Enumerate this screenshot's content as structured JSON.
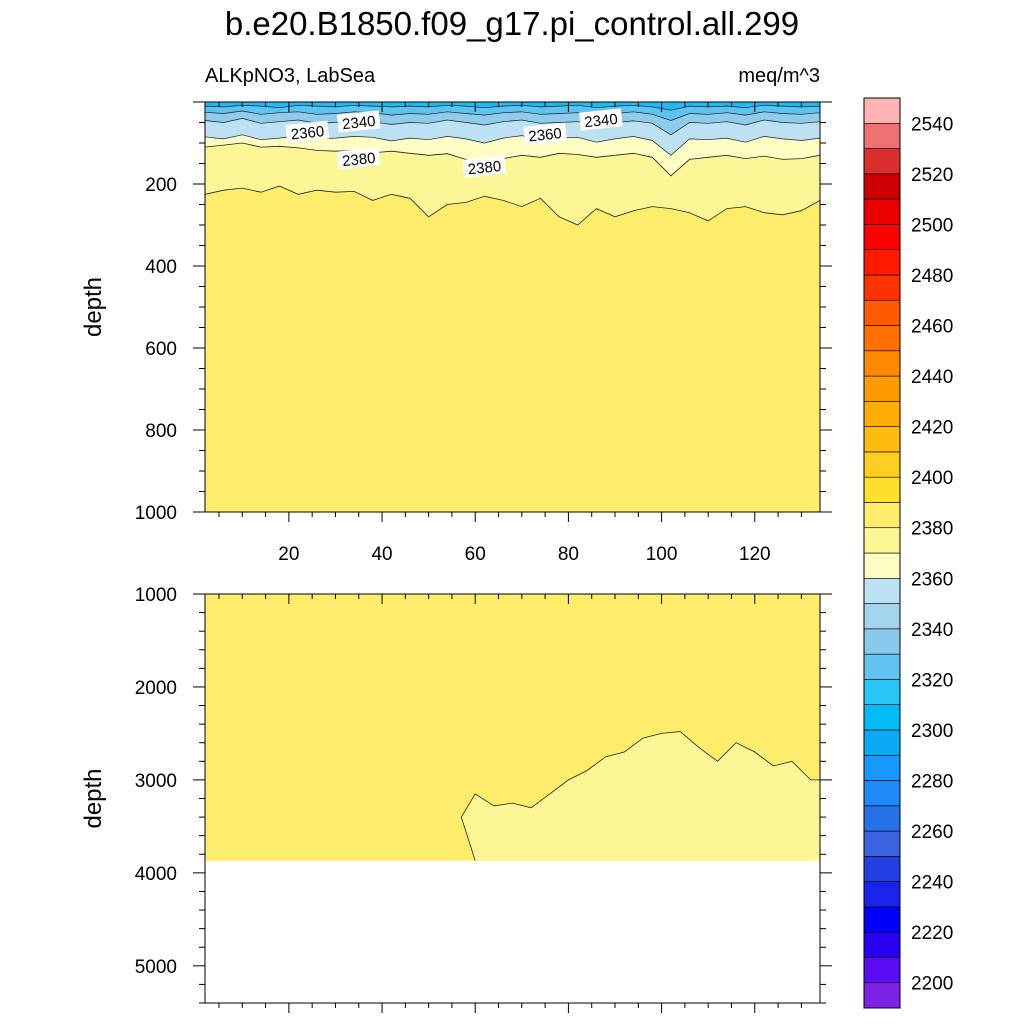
{
  "title": "b.e20.B1850.f09_g17.pi_control.all.299",
  "subtitle_left": "ALKpNO3, LabSea",
  "subtitle_right": "meq/m^3",
  "colors": {
    "yellow_2380_2400": "#fded6a",
    "yellow_2400_bin_light": "#fdf695",
    "yellow_pale": "#fefdc4",
    "blue_2360": "#bbe1f3",
    "blue_2340": "#8fcbed",
    "blue_2320": "#5dc3f3",
    "blue_2300": "#1fbbf5"
  },
  "chart_data": [
    {
      "type": "contour",
      "panel": "upper",
      "ylabel": "depth",
      "xlabel": "",
      "xlim": [
        2,
        134
      ],
      "ylim": [
        0,
        1000
      ],
      "y_inverted": true,
      "x_ticks": [
        20,
        40,
        60,
        80,
        100,
        120
      ],
      "y_ticks": [
        200,
        400,
        600,
        800,
        1000
      ],
      "x_tick_labels": [
        "20",
        "40",
        "60",
        "80",
        "100",
        "120"
      ],
      "y_tick_labels": [
        "200",
        "400",
        "600",
        "800",
        "1000"
      ],
      "contour_labels": [
        {
          "text": "2360",
          "x": 24,
          "y": 75
        },
        {
          "text": "2340",
          "x": 35,
          "y": 50
        },
        {
          "text": "2380",
          "x": 35,
          "y": 140
        },
        {
          "text": "2380",
          "x": 62,
          "y": 160
        },
        {
          "text": "2360",
          "x": 75,
          "y": 80
        },
        {
          "text": "2340",
          "x": 87,
          "y": 45
        }
      ],
      "contour_2400_depth": {
        "x": [
          2,
          6,
          10,
          14,
          18,
          22,
          26,
          30,
          34,
          38,
          42,
          46,
          50,
          54,
          58,
          62,
          66,
          70,
          74,
          78,
          82,
          86,
          90,
          94,
          98,
          102,
          106,
          110,
          114,
          118,
          122,
          126,
          130,
          134
        ],
        "depth": [
          225,
          215,
          210,
          220,
          205,
          225,
          215,
          220,
          218,
          240,
          225,
          235,
          280,
          250,
          245,
          230,
          240,
          255,
          235,
          280,
          300,
          260,
          280,
          265,
          255,
          260,
          270,
          290,
          260,
          255,
          270,
          275,
          265,
          240
        ]
      },
      "contour_2380_depth": {
        "x": [
          2,
          6,
          10,
          14,
          18,
          22,
          26,
          30,
          34,
          38,
          42,
          46,
          50,
          54,
          58,
          62,
          66,
          70,
          74,
          78,
          82,
          86,
          90,
          94,
          98,
          102,
          106,
          110,
          114,
          118,
          122,
          126,
          130,
          134
        ],
        "depth": [
          110,
          105,
          100,
          110,
          108,
          112,
          118,
          120,
          118,
          124,
          120,
          125,
          130,
          126,
          140,
          150,
          138,
          130,
          135,
          125,
          128,
          135,
          130,
          125,
          135,
          180,
          140,
          135,
          130,
          138,
          132,
          140,
          138,
          130
        ]
      },
      "blue_layers_depth": {
        "x": [
          2,
          6,
          10,
          14,
          18,
          22,
          26,
          30,
          34,
          38,
          42,
          46,
          50,
          54,
          58,
          62,
          66,
          70,
          74,
          78,
          82,
          86,
          90,
          94,
          98,
          102,
          106,
          110,
          114,
          118,
          122,
          126,
          130,
          134
        ],
        "c2300": [
          10,
          12,
          8,
          10,
          14,
          8,
          10,
          12,
          8,
          10,
          12,
          10,
          12,
          8,
          10,
          14,
          10,
          8,
          12,
          10,
          8,
          14,
          10,
          8,
          12,
          20,
          10,
          12,
          10,
          14,
          8,
          10,
          12,
          10
        ],
        "c2320": [
          25,
          28,
          22,
          30,
          26,
          24,
          30,
          28,
          24,
          26,
          32,
          28,
          30,
          24,
          28,
          32,
          26,
          24,
          30,
          28,
          26,
          32,
          28,
          24,
          30,
          45,
          28,
          30,
          26,
          32,
          24,
          28,
          30,
          26
        ],
        "c2340": [
          45,
          50,
          40,
          52,
          48,
          44,
          52,
          50,
          46,
          48,
          55,
          50,
          52,
          44,
          50,
          56,
          48,
          44,
          52,
          50,
          48,
          56,
          50,
          46,
          52,
          80,
          50,
          52,
          48,
          56,
          44,
          50,
          52,
          48
        ],
        "c2360": [
          85,
          90,
          80,
          92,
          88,
          82,
          90,
          88,
          84,
          86,
          95,
          88,
          92,
          84,
          90,
          100,
          88,
          82,
          92,
          88,
          86,
          98,
          90,
          84,
          94,
          130,
          90,
          92,
          88,
          98,
          84,
          90,
          94,
          88
        ]
      }
    },
    {
      "type": "contour",
      "panel": "lower",
      "ylabel": "depth",
      "xlabel": "",
      "xlim": [
        2,
        134
      ],
      "ylim": [
        1000,
        5400
      ],
      "y_inverted": true,
      "y_ticks": [
        1000,
        2000,
        3000,
        4000,
        5000
      ],
      "y_tick_labels": [
        "1000",
        "2000",
        "3000",
        "4000",
        "5000"
      ],
      "bottom_depth": 3870,
      "contour_2400_depth": {
        "x": [
          60,
          57,
          60,
          64,
          68,
          72,
          76,
          80,
          84,
          88,
          92,
          96,
          100,
          104,
          108,
          112,
          116,
          120,
          124,
          128,
          132,
          134
        ],
        "depth": [
          3870,
          3400,
          3150,
          3280,
          3250,
          3300,
          3150,
          3000,
          2900,
          2750,
          2700,
          2550,
          2500,
          2480,
          2650,
          2800,
          2600,
          2700,
          2850,
          2800,
          3000,
          3000
        ]
      }
    }
  ],
  "colorbar": {
    "tick_labels": [
      "2200",
      "2220",
      "2240",
      "2260",
      "2280",
      "2300",
      "2320",
      "2340",
      "2360",
      "2380",
      "2400",
      "2420",
      "2440",
      "2460",
      "2480",
      "2500",
      "2520",
      "2540"
    ],
    "bin_colors": [
      "#7b22e6",
      "#5c0cf2",
      "#2a00f2",
      "#0000fb",
      "#1a23ea",
      "#2240e2",
      "#3c62dd",
      "#2471e8",
      "#1f8af5",
      "#1798fb",
      "#0aaaf4",
      "#00bdf5",
      "#2ac6f8",
      "#61c4f0",
      "#88c9ec",
      "#a2d4ee",
      "#bbe1f3",
      "#fefdc4",
      "#fdf695",
      "#fded6a",
      "#fde02a",
      "#fdcd1f",
      "#ffbc0f",
      "#ffae00",
      "#ff9a00",
      "#ff8a00",
      "#ff7000",
      "#ff5a00",
      "#ff3300",
      "#ff1a00",
      "#ff0000",
      "#eb0000",
      "#cc0000",
      "#d92f2f",
      "#ee7070",
      "#ffb4b4"
    ]
  }
}
